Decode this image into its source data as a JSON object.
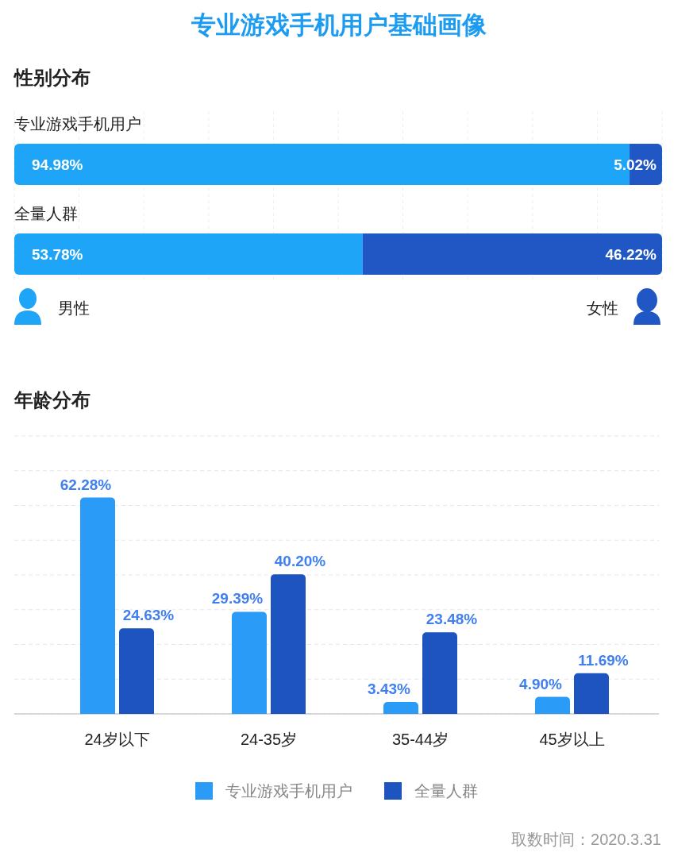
{
  "chart_data": [
    {
      "type": "bar",
      "orientation": "horizontal",
      "stacked": true,
      "title": "专业游戏手机用户基础画像",
      "subtitle": "性别分布",
      "categories": [
        "专业游戏手机用户",
        "全量人群"
      ],
      "series": [
        {
          "name": "男性",
          "color": "#1fa5f8",
          "values": [
            94.98,
            53.78
          ],
          "value_labels": [
            "94.98%",
            "53.78%"
          ]
        },
        {
          "name": "女性",
          "color": "#2157c4",
          "values": [
            5.02,
            46.22
          ],
          "value_labels": [
            "5.02%",
            "46.22%"
          ]
        }
      ],
      "xlim": [
        0,
        100
      ],
      "xticks": [
        {
          "value": 0,
          "label": null
        },
        {
          "value": 10,
          "label": null
        },
        {
          "value": 20,
          "label": null
        },
        {
          "value": 30,
          "label": null
        },
        {
          "value": 40,
          "label": null
        },
        {
          "value": 50,
          "label": null
        },
        {
          "value": 60,
          "label": null
        },
        {
          "value": 70,
          "label": null
        },
        {
          "value": 80,
          "label": null
        },
        {
          "value": 90,
          "label": null
        },
        {
          "value": 100,
          "label": null
        }
      ],
      "grid": "x",
      "tick_labels": "y",
      "legend": "bottom"
    },
    {
      "type": "bar",
      "title": "年龄分布",
      "categories": [
        "24岁以下",
        "24-35岁",
        "35-44岁",
        "45岁以上"
      ],
      "series": [
        {
          "name": "专业游戏手机用户",
          "color": "#2a9cf8",
          "values": [
            62.28,
            29.39,
            3.43,
            4.9
          ],
          "value_labels": [
            "62.28%",
            "29.39%",
            "3.43%",
            "4.90%"
          ]
        },
        {
          "name": "全量人群",
          "color": "#1d54bf",
          "values": [
            24.63,
            40.2,
            23.48,
            11.69
          ],
          "value_labels": [
            "24.63%",
            "40.20%",
            "23.48%",
            "11.69%"
          ]
        }
      ],
      "ylim": [
        0,
        80
      ],
      "yticks": [
        {
          "value": 0,
          "label": null
        },
        {
          "value": 10,
          "label": null
        },
        {
          "value": 20,
          "label": null
        },
        {
          "value": 30,
          "label": null
        },
        {
          "value": 40,
          "label": null
        },
        {
          "value": 50,
          "label": null
        },
        {
          "value": 60,
          "label": null
        },
        {
          "value": 70,
          "label": null
        },
        {
          "value": 80,
          "label": null
        }
      ],
      "grid": "y",
      "tick_labels": "x",
      "legend": "bottom",
      "annotations": [
        "取数时间：2020.3.31"
      ]
    }
  ]
}
